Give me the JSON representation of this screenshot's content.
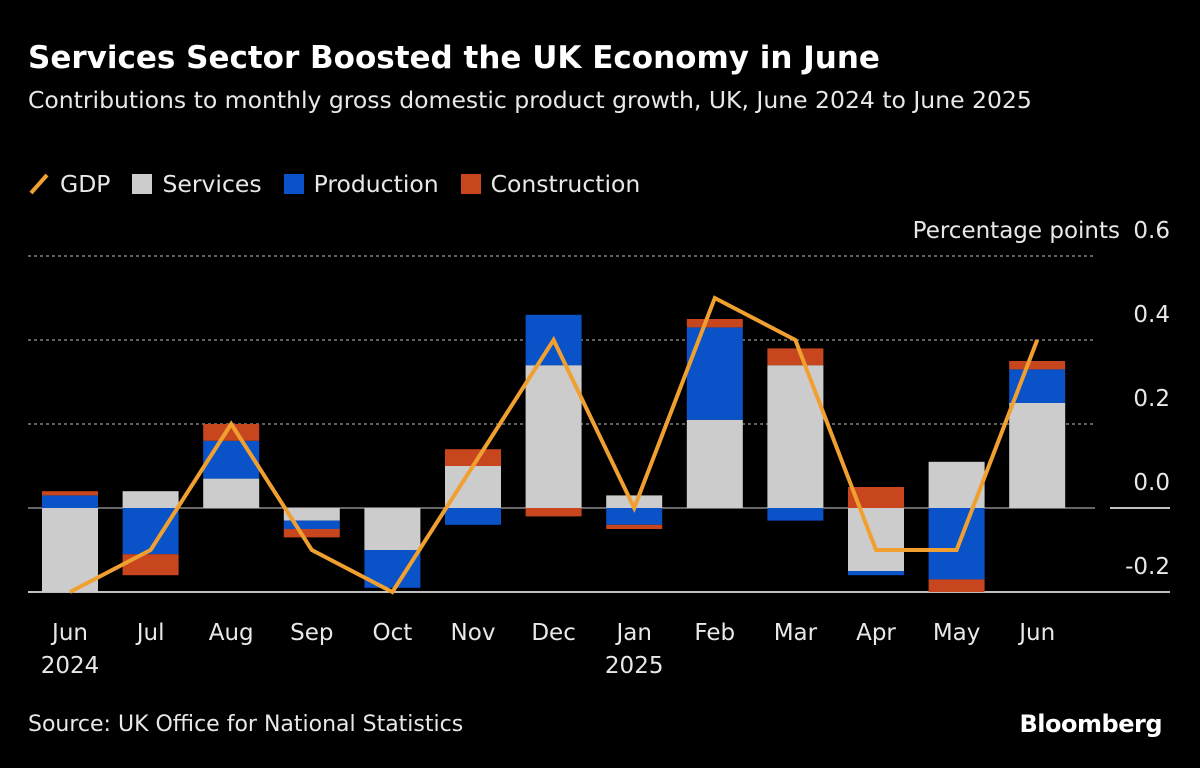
{
  "title": "Services Sector Boosted the UK Economy in June",
  "subtitle": "Contributions to monthly gross domestic product growth, UK, June 2024 to June 2025",
  "source": "Source: UK Office for National Statistics",
  "brand": "Bloomberg",
  "colors": {
    "gdp": "#f0a030",
    "services": "#cccccc",
    "production": "#0a52c8",
    "construction": "#c8461e"
  },
  "chart_data": {
    "type": "bar",
    "stacked": true,
    "title": "Services Sector Boosted the UK Economy in June",
    "ylabel": "Percentage points",
    "ylim": [
      -0.2,
      0.6
    ],
    "yticks": [
      "-0.2",
      "0.0",
      "0.2",
      "0.4",
      "0.6"
    ],
    "ytick_values": [
      -0.2,
      0.0,
      0.2,
      0.4,
      0.6
    ],
    "grid": true,
    "legend_position": "top-left",
    "categories": [
      "Jun",
      "Jul",
      "Aug",
      "Sep",
      "Oct",
      "Nov",
      "Dec",
      "Jan",
      "Feb",
      "Mar",
      "Apr",
      "May",
      "Jun"
    ],
    "category_years": [
      "2024",
      "",
      "",
      "",
      "",
      "",
      "",
      "2025",
      "",
      "",
      "",
      "",
      ""
    ],
    "series": [
      {
        "name": "Services",
        "type": "bar",
        "values": [
          -0.2,
          0.04,
          0.07,
          -0.03,
          -0.1,
          0.1,
          0.34,
          0.03,
          0.21,
          0.34,
          -0.15,
          0.11,
          0.25
        ]
      },
      {
        "name": "Production",
        "type": "bar",
        "values": [
          0.03,
          -0.11,
          0.09,
          -0.02,
          -0.09,
          -0.04,
          0.12,
          -0.04,
          0.22,
          -0.03,
          -0.01,
          -0.17,
          0.08
        ]
      },
      {
        "name": "Construction",
        "type": "bar",
        "values": [
          0.01,
          -0.05,
          0.04,
          -0.02,
          0.0,
          0.04,
          -0.02,
          -0.01,
          0.02,
          0.04,
          0.05,
          -0.03,
          0.02
        ]
      },
      {
        "name": "GDP",
        "type": "line",
        "values": [
          -0.2,
          -0.1,
          0.2,
          -0.1,
          -0.2,
          0.1,
          0.4,
          0.0,
          0.5,
          0.4,
          -0.1,
          -0.1,
          0.4
        ]
      }
    ]
  }
}
